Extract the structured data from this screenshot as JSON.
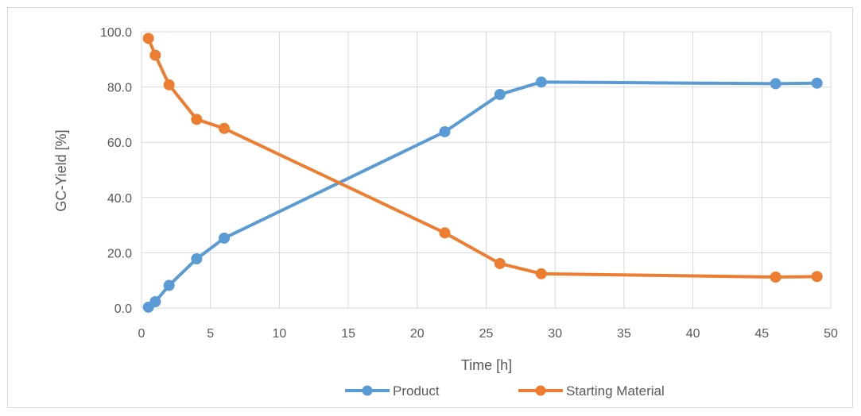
{
  "chart_data": {
    "type": "line",
    "title": "",
    "xlabel": "Time [h]",
    "ylabel": "GC-Yield [%]",
    "xlim": [
      0,
      50
    ],
    "ylim": [
      0,
      100
    ],
    "xticks": [
      "0",
      "5",
      "10",
      "15",
      "20",
      "25",
      "30",
      "35",
      "40",
      "45",
      "50"
    ],
    "yticks": [
      "0.0",
      "20.0",
      "40.0",
      "60.0",
      "80.0",
      "100.0"
    ],
    "grid": true,
    "legend_position": "bottom",
    "series": [
      {
        "name": "Product",
        "color": "#5b9bd5",
        "points": [
          [
            0.5,
            0.3
          ],
          [
            1,
            2.3
          ],
          [
            2,
            8.2
          ],
          [
            4,
            17.8
          ],
          [
            6,
            25.3
          ],
          [
            22,
            63.8
          ],
          [
            26,
            77.3
          ],
          [
            29,
            81.8
          ],
          [
            46,
            81.2
          ],
          [
            49,
            81.4
          ]
        ]
      },
      {
        "name": "Starting Material",
        "color": "#ed7d31",
        "points": [
          [
            0.5,
            97.6
          ],
          [
            1,
            91.5
          ],
          [
            2,
            80.8
          ],
          [
            4,
            68.3
          ],
          [
            6,
            65.0
          ],
          [
            22,
            27.2
          ],
          [
            26,
            16.1
          ],
          [
            29,
            12.4
          ],
          [
            46,
            11.2
          ],
          [
            49,
            11.4
          ]
        ]
      }
    ]
  }
}
